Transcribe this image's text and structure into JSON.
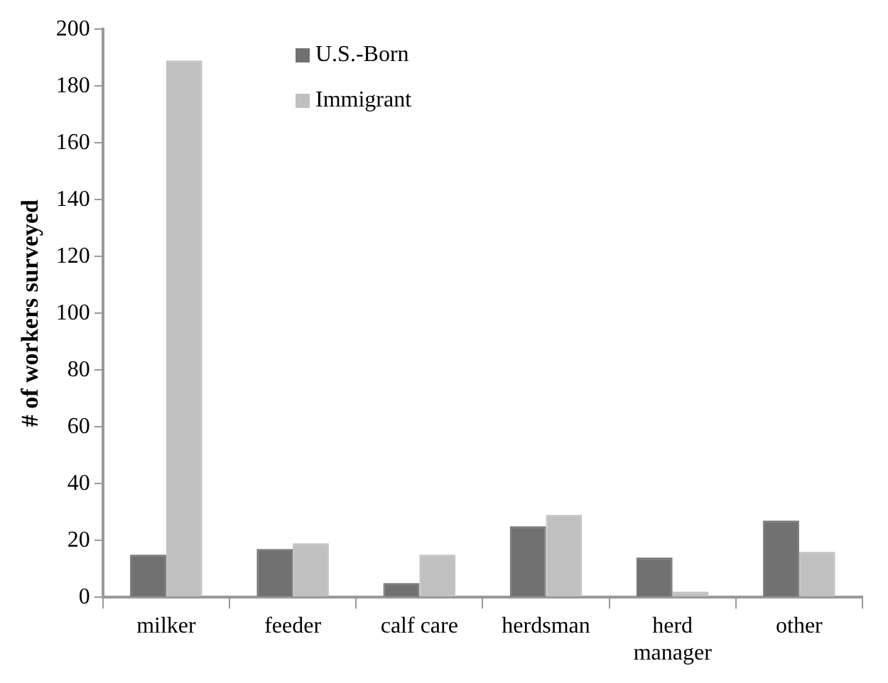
{
  "chart_data": {
    "type": "bar",
    "ylabel": "# of workers surveyed",
    "categories": [
      "milker",
      "feeder",
      "calf care",
      "herdsman",
      "herd manager",
      "other"
    ],
    "series": [
      {
        "name": "U.S.-Born",
        "color": "#717171",
        "values": [
          15,
          17,
          5,
          25,
          14,
          27
        ]
      },
      {
        "name": "Immigrant",
        "color": "#c0c0c0",
        "values": [
          189,
          19,
          15,
          29,
          2,
          16
        ]
      }
    ],
    "ylim": [
      0,
      200
    ],
    "yticks": [
      0,
      20,
      40,
      60,
      80,
      100,
      120,
      140,
      160,
      180,
      200
    ],
    "grid": false,
    "legend": "top left"
  }
}
